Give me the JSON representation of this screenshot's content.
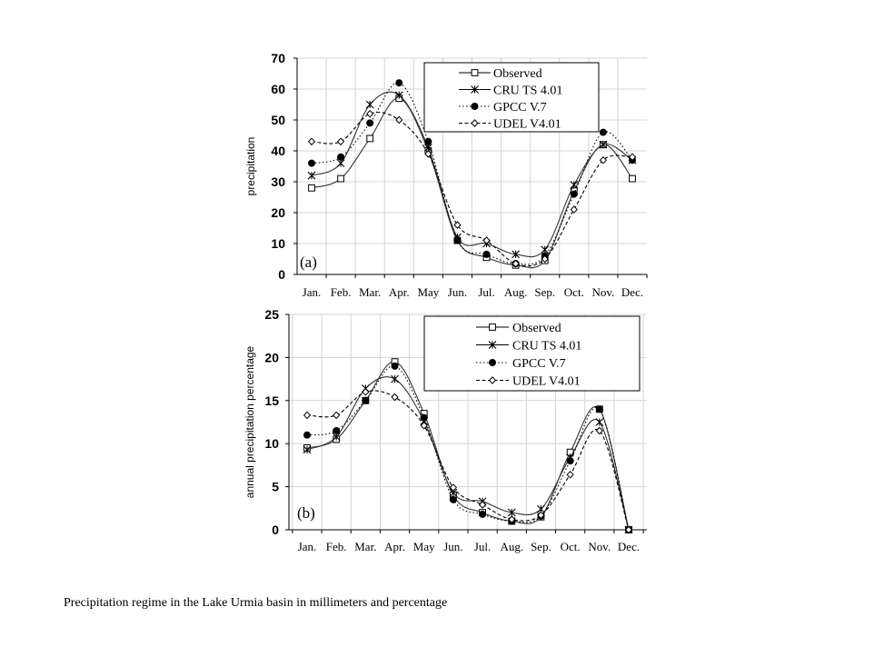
{
  "caption": "Precipitation regime in the Lake Urmia basin in millimeters and percentage",
  "months": [
    "Jan.",
    "Feb.",
    "Mar.",
    "Apr.",
    "May",
    "Jun.",
    "Jul.",
    "Aug.",
    "Sep.",
    "Oct.",
    "Nov.",
    "Dec."
  ],
  "chart_data": [
    {
      "type": "line",
      "panel_label": "(a)",
      "ylabel": "precipitation",
      "ylim": [
        0,
        70
      ],
      "yticks": [
        0,
        10,
        20,
        30,
        40,
        50,
        60,
        70
      ],
      "grid": true,
      "legend_position": "top-right",
      "categories": [
        "Jan.",
        "Feb.",
        "Mar.",
        "Apr.",
        "May",
        "Jun.",
        "Jul.",
        "Aug.",
        "Sep.",
        "Oct.",
        "Nov.",
        "Dec."
      ],
      "series": [
        {
          "name": "Observed",
          "marker": "square-open",
          "line": "solid",
          "values": [
            28,
            31,
            44,
            57,
            40,
            11,
            5.5,
            3,
            4.5,
            27,
            42,
            31
          ]
        },
        {
          "name": "CRU TS 4.01",
          "marker": "asterisk",
          "line": "solid",
          "values": [
            32,
            36,
            55,
            58,
            41,
            12,
            10,
            6.5,
            8,
            29,
            42,
            37
          ]
        },
        {
          "name": "GPCC V.7",
          "marker": "circle-filled",
          "line": "dotted",
          "values": [
            36,
            38,
            49,
            62,
            43,
            11,
            6.5,
            3.5,
            6,
            26,
            46,
            37
          ]
        },
        {
          "name": "UDEL V4.01",
          "marker": "diamond-open",
          "line": "dashed",
          "values": [
            43,
            43,
            52,
            50,
            39,
            16,
            11,
            3.5,
            5,
            21,
            37,
            38
          ]
        }
      ]
    },
    {
      "type": "line",
      "panel_label": "(b)",
      "ylabel": "annual precipitation percentage",
      "ylim": [
        0,
        25
      ],
      "yticks": [
        0,
        5,
        10,
        15,
        20,
        25
      ],
      "grid": true,
      "legend_position": "top-right",
      "categories": [
        "Jan.",
        "Feb.",
        "Mar.",
        "Apr.",
        "May",
        "Jun.",
        "Jul.",
        "Aug.",
        "Sep.",
        "Oct.",
        "Nov.",
        "Dec."
      ],
      "series": [
        {
          "name": "Observed",
          "marker": "square-open",
          "line": "solid",
          "values": [
            9.5,
            10.5,
            15,
            19.5,
            13.5,
            4,
            2,
            1,
            1.5,
            9,
            14,
            0
          ]
        },
        {
          "name": "CRU TS 4.01",
          "marker": "asterisk",
          "line": "solid",
          "values": [
            9.3,
            10.8,
            16.4,
            17.5,
            12.6,
            4.3,
            3.3,
            2,
            2.4,
            8.4,
            12.5,
            0
          ]
        },
        {
          "name": "GPCC V.7",
          "marker": "circle-filled",
          "line": "dotted",
          "values": [
            11,
            11.5,
            15,
            19,
            13,
            3.5,
            1.8,
            1,
            1.6,
            8,
            14,
            0
          ]
        },
        {
          "name": "UDEL V4.01",
          "marker": "diamond-open",
          "line": "dashed",
          "values": [
            13.3,
            13.3,
            16,
            15.4,
            12.1,
            4.9,
            2.9,
            1.2,
            1.7,
            6.4,
            11.5,
            0
          ]
        }
      ]
    }
  ]
}
